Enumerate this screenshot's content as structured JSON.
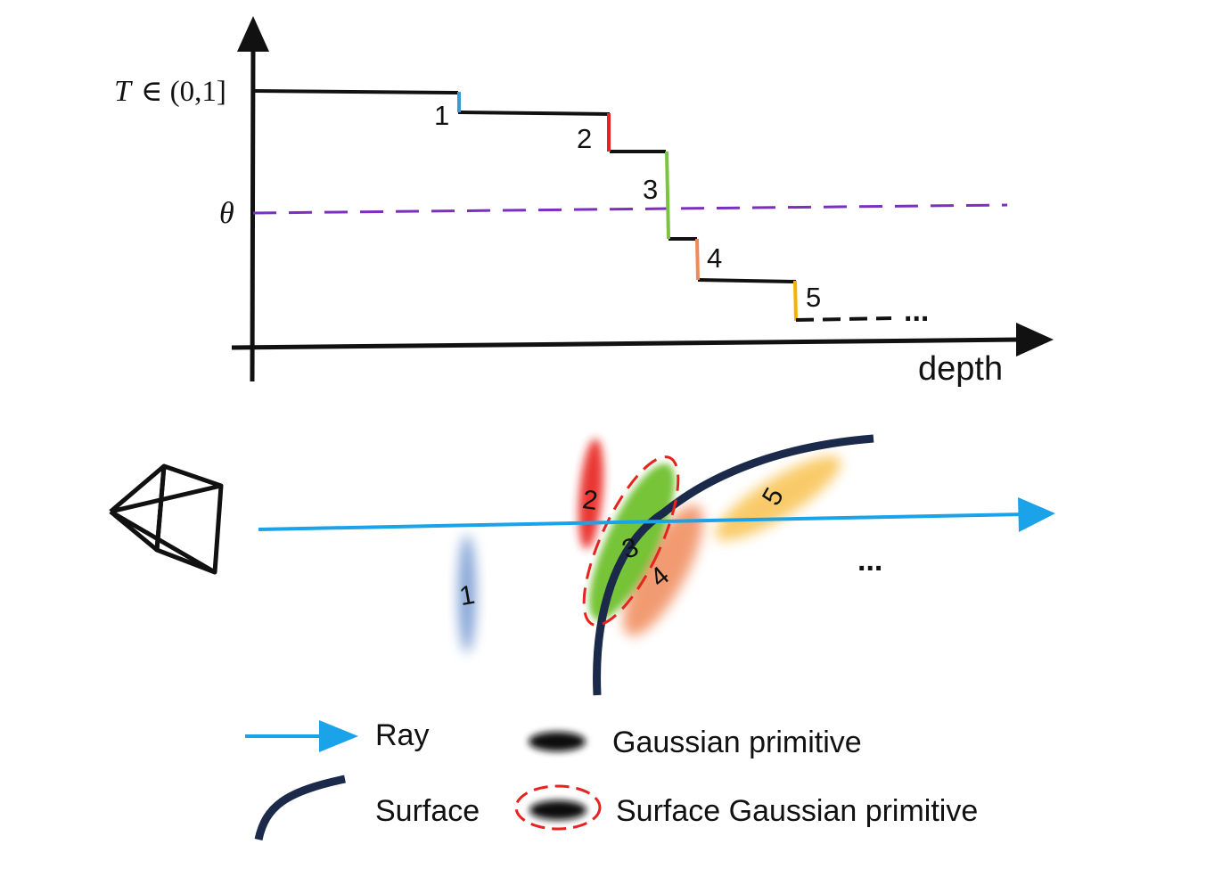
{
  "plot": {
    "y_label_T": "T",
    "y_label_interval": "∈ (0,1]",
    "theta_label": "θ",
    "x_label": "depth",
    "ellipsis": "...",
    "steps": [
      {
        "label": "1",
        "color": "#3a9bd6"
      },
      {
        "label": "2",
        "color": "#e8221f"
      },
      {
        "label": "3",
        "color": "#7cc243"
      },
      {
        "label": "4",
        "color": "#f08a5a"
      },
      {
        "label": "5",
        "color": "#f2b400"
      }
    ],
    "threshold_color": "#7b2fbf"
  },
  "scene": {
    "ray_color": "#1aa3e8",
    "surface_color": "#1b2a4a",
    "primitive_labels": [
      "1",
      "2",
      "3",
      "4",
      "5"
    ],
    "ellipsis": "..."
  },
  "legend": {
    "ray": "Ray",
    "gaussian": "Gaussian primitive",
    "surface": "Surface",
    "surface_gaussian": "Surface Gaussian primitive"
  }
}
